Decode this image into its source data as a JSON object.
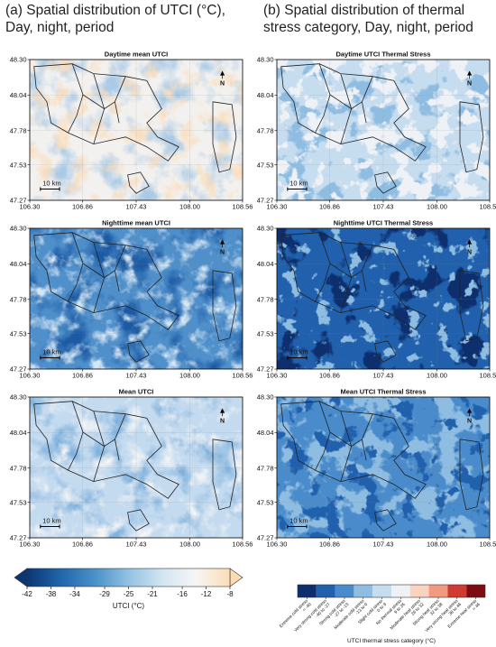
{
  "headings": {
    "a": "(a) Spatial distribution of UTCI (°C), Day, night, period",
    "b": "(b) Spatial distribution of thermal stress category, Day, night, period"
  },
  "map_axes": {
    "xlim": [
      106.3,
      108.56
    ],
    "xticks": [
      {
        "value": 106.3,
        "label": "106.30"
      },
      {
        "value": 106.86,
        "label": "106.86"
      },
      {
        "value": 107.43,
        "label": "107.43"
      },
      {
        "value": 108.0,
        "label": "108.00"
      },
      {
        "value": 108.56,
        "label": "108.56"
      }
    ],
    "ylim": [
      47.27,
      48.3
    ],
    "yticks": [
      {
        "value": 47.27,
        "label": "47.27"
      },
      {
        "value": 47.53,
        "label": "47.53"
      },
      {
        "value": 47.78,
        "label": "47.78"
      },
      {
        "value": 48.04,
        "label": "48.04"
      },
      {
        "value": 48.3,
        "label": "48.30"
      }
    ],
    "scale_label": "10 km",
    "north_label": "N"
  },
  "panels": {
    "a": [
      "Daytime mean UTCI",
      "Nighttime mean UTCI",
      "Mean UTCI"
    ],
    "b": [
      "Daytime UTCI Thermal Stress",
      "Nighttime UTCI Thermal Stress",
      "Mean UTCI Thermal Stress"
    ]
  },
  "utci_colorbar": {
    "lim": [
      -42,
      -8
    ],
    "ticks": [
      -42,
      -38,
      -34,
      -29,
      -25,
      -21,
      -16,
      -12,
      -8
    ],
    "label": "UTCI (°C)",
    "colors": [
      "#0b3673",
      "#2166ac",
      "#4a90c8",
      "#92c2e2",
      "#d3e5f2",
      "#f6f6f4",
      "#fbdcb4"
    ]
  },
  "stress_colorbar": {
    "label": "UTCI thermal stress category (°C)",
    "categories": [
      {
        "name": "Extreme cold stress",
        "range": "< -40",
        "color": "#0d2f6e"
      },
      {
        "name": "Very strong cold stress",
        "range": "-40 to -27",
        "color": "#2060ac"
      },
      {
        "name": "Strong cold stress",
        "range": "-27 to -13",
        "color": "#4a8ccb"
      },
      {
        "name": "Moderate cold stress",
        "range": "-13 to 0",
        "color": "#8fbde2"
      },
      {
        "name": "Slight cold stress",
        "range": "0 to 9",
        "color": "#c6dcef"
      },
      {
        "name": "No thermal stress",
        "range": "9 to 26",
        "color": "#eef2f6"
      },
      {
        "name": "Moderate heat stress",
        "range": "26 to 32",
        "color": "#f9d3c0"
      },
      {
        "name": "Strong heat stress",
        "range": "32 to 38",
        "color": "#f09a80"
      },
      {
        "name": "Very strong heat stress",
        "range": "38 to 46",
        "color": "#cf3b33"
      },
      {
        "name": "Extreme heat stress",
        "range": "> 46",
        "color": "#7d0c12"
      }
    ]
  }
}
